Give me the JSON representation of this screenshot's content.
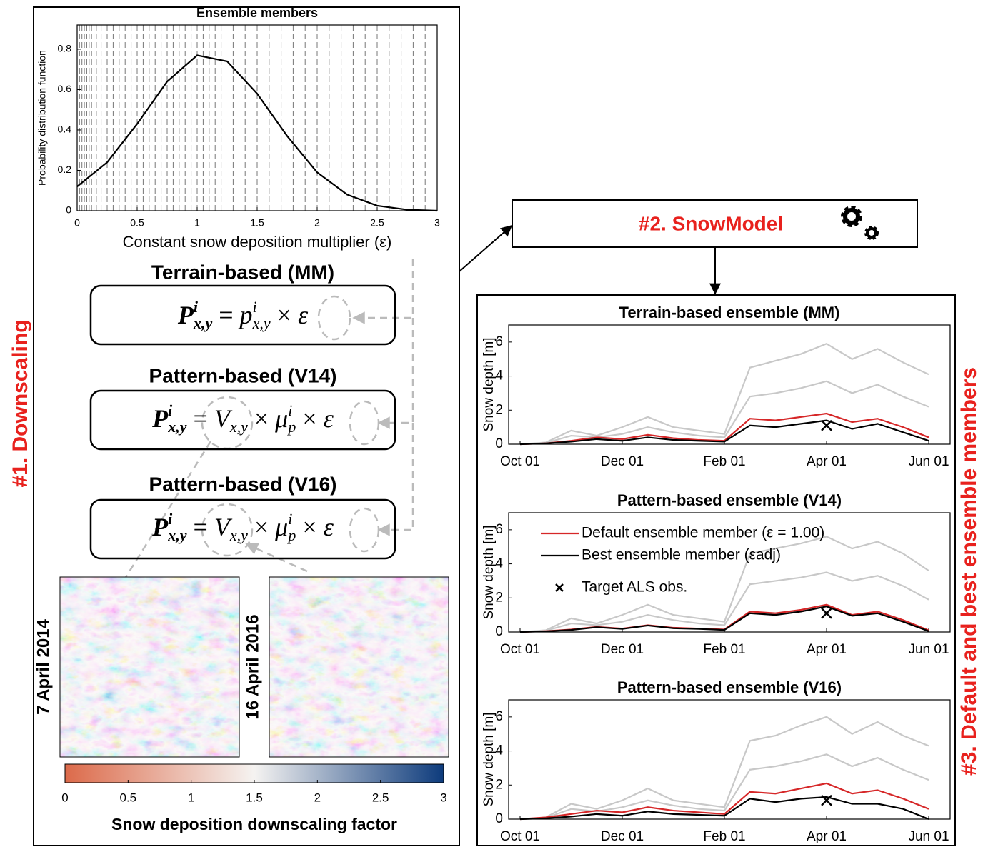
{
  "chart_data": [
    {
      "type": "line",
      "title": "Ensemble members",
      "xlabel": "Constant snow deposition multiplier (ε)",
      "ylabel": "Probability distribution function",
      "x": [
        0,
        0.25,
        0.5,
        0.75,
        1,
        1.25,
        1.5,
        1.75,
        2,
        2.25,
        2.5,
        2.75,
        3
      ],
      "series": [
        {
          "color": "#000000",
          "values": [
            0.12,
            0.24,
            0.43,
            0.64,
            0.77,
            0.74,
            0.58,
            0.37,
            0.19,
            0.08,
            0.025,
            0.005,
            0
          ]
        }
      ],
      "vlines": [
        0.02,
        0.04,
        0.06,
        0.08,
        0.1,
        0.12,
        0.14,
        0.16,
        0.2,
        0.25,
        0.3,
        0.35,
        0.4,
        0.45,
        0.5,
        0.55,
        0.6,
        0.65,
        0.7,
        0.75,
        0.8,
        0.85,
        0.9,
        0.95,
        1.0,
        1.05,
        1.1,
        1.15,
        1.2,
        1.3,
        1.4,
        1.5,
        1.6,
        1.7,
        1.8,
        1.9,
        2.0,
        2.1,
        2.2,
        2.3,
        2.4,
        2.5,
        2.6,
        2.7,
        2.8,
        2.9,
        3.0
      ],
      "vline_color": "#777777",
      "xlim": [
        0,
        3
      ],
      "xticks": [
        0,
        0.5,
        1,
        1.5,
        2,
        2.5,
        3
      ],
      "ylim": [
        0,
        0.92
      ],
      "yticks": [
        0,
        0.2,
        0.4,
        0.6,
        0.8
      ]
    },
    {
      "type": "line",
      "title": "Terrain-based ensemble (MM)",
      "ylabel": "Snow depth [m]",
      "categories": [
        "Oct 01",
        null,
        null,
        null,
        "Dec 01",
        null,
        null,
        null,
        "Feb 01",
        null,
        null,
        null,
        "Apr 01",
        null,
        null,
        null,
        "Jun 01"
      ],
      "series": [
        {
          "color": "#c8c8c8",
          "values": [
            0,
            0.1,
            0.8,
            0.5,
            1.0,
            1.6,
            1.0,
            0.8,
            0.6,
            4.5,
            4.9,
            5.3,
            5.9,
            5.0,
            5.6,
            4.8,
            4.1
          ]
        },
        {
          "color": "#c8c8c8",
          "values": [
            0,
            0.07,
            0.5,
            0.4,
            0.6,
            1.0,
            0.7,
            0.5,
            0.4,
            2.8,
            3.0,
            3.3,
            3.7,
            3.0,
            3.5,
            2.8,
            2.2
          ]
        },
        {
          "color": "#d62728",
          "values": [
            0,
            0.05,
            0.2,
            0.4,
            0.3,
            0.55,
            0.35,
            0.25,
            0.2,
            1.5,
            1.4,
            1.6,
            1.8,
            1.3,
            1.5,
            1.0,
            0.4
          ]
        },
        {
          "color": "#000000",
          "values": [
            0,
            0.05,
            0.15,
            0.3,
            0.2,
            0.4,
            0.25,
            0.2,
            0.15,
            1.1,
            1.0,
            1.2,
            1.4,
            0.9,
            1.2,
            0.7,
            0.2
          ]
        },
        {
          "color": "#000000",
          "marker": "x",
          "values": [
            null,
            null,
            null,
            null,
            null,
            null,
            null,
            null,
            null,
            null,
            null,
            null,
            1.1,
            null,
            null,
            null,
            null
          ]
        }
      ],
      "ylim": [
        0,
        7
      ],
      "yticks": [
        0,
        2,
        4,
        6
      ]
    },
    {
      "type": "line",
      "title": "Pattern-based ensemble (V14)",
      "ylabel": "Snow depth [m]",
      "legend": "upper left",
      "categories": [
        "Oct 01",
        null,
        null,
        null,
        "Dec 01",
        null,
        null,
        null,
        "Feb 01",
        null,
        null,
        null,
        "Apr 01",
        null,
        null,
        null,
        "Jun 01"
      ],
      "series": [
        {
          "color": "#c8c8c8",
          "values": [
            0,
            0.1,
            0.8,
            0.5,
            1.0,
            1.6,
            1.0,
            0.8,
            0.6,
            4.6,
            4.9,
            5.2,
            5.6,
            4.9,
            5.3,
            4.6,
            3.6
          ]
        },
        {
          "color": "#c8c8c8",
          "values": [
            0,
            0.07,
            0.5,
            0.4,
            0.6,
            1.0,
            0.7,
            0.5,
            0.4,
            2.8,
            3.0,
            3.2,
            3.5,
            3.0,
            3.3,
            2.7,
            1.9
          ]
        },
        {
          "name": "Default ensemble member (ε = 1.00)",
          "color": "#d62728",
          "values": [
            0,
            0.05,
            0.15,
            0.3,
            0.2,
            0.4,
            0.25,
            0.2,
            0.15,
            1.2,
            1.1,
            1.3,
            1.6,
            1.0,
            1.2,
            0.7,
            0.1
          ]
        },
        {
          "name": "Best ensemble member (εadj)",
          "color": "#000000",
          "values": [
            0,
            0.04,
            0.12,
            0.28,
            0.18,
            0.38,
            0.22,
            0.18,
            0.12,
            1.1,
            1.0,
            1.2,
            1.5,
            0.95,
            1.1,
            0.6,
            0.05
          ]
        },
        {
          "name": "Target ALS obs.",
          "color": "#000000",
          "marker": "x",
          "values": [
            null,
            null,
            null,
            null,
            null,
            null,
            null,
            null,
            null,
            null,
            null,
            null,
            1.1,
            null,
            null,
            null,
            null
          ]
        }
      ],
      "ylim": [
        0,
        7
      ],
      "yticks": [
        0,
        2,
        4,
        6
      ]
    },
    {
      "type": "line",
      "title": "Pattern-based ensemble (V16)",
      "ylabel": "Snow depth [m]",
      "categories": [
        "Oct 01",
        null,
        null,
        null,
        "Dec 01",
        null,
        null,
        null,
        "Feb 01",
        null,
        null,
        null,
        "Apr 01",
        null,
        null,
        null,
        "Jun 01"
      ],
      "series": [
        {
          "color": "#c8c8c8",
          "values": [
            0,
            0.1,
            0.9,
            0.6,
            1.1,
            1.8,
            1.1,
            0.9,
            0.7,
            4.6,
            4.9,
            5.5,
            6.0,
            5.0,
            5.7,
            4.9,
            4.3
          ]
        },
        {
          "color": "#c8c8c8",
          "values": [
            0,
            0.07,
            0.6,
            0.45,
            0.7,
            1.1,
            0.8,
            0.6,
            0.5,
            2.9,
            3.1,
            3.4,
            3.8,
            3.1,
            3.6,
            2.9,
            2.3
          ]
        },
        {
          "color": "#d62728",
          "values": [
            0,
            0.1,
            0.3,
            0.5,
            0.4,
            0.7,
            0.5,
            0.4,
            0.3,
            1.6,
            1.5,
            1.8,
            2.1,
            1.5,
            1.7,
            1.2,
            0.6
          ]
        },
        {
          "color": "#000000",
          "values": [
            0,
            0.05,
            0.15,
            0.3,
            0.2,
            0.45,
            0.3,
            0.25,
            0.2,
            1.2,
            1.0,
            1.2,
            1.3,
            0.9,
            0.9,
            0.6,
            0.0
          ]
        },
        {
          "color": "#000000",
          "marker": "x",
          "values": [
            null,
            null,
            null,
            null,
            null,
            null,
            null,
            null,
            null,
            null,
            null,
            null,
            1.1,
            null,
            null,
            null,
            null
          ]
        }
      ],
      "ylim": [
        0,
        7
      ],
      "yticks": [
        0,
        2,
        4,
        6
      ]
    }
  ],
  "colorbar": {
    "label": "Snow deposition downscaling factor",
    "lim": [
      0,
      3
    ],
    "ticks": [
      0,
      0.5,
      1,
      1.5,
      2,
      2.5,
      3
    ],
    "colors": [
      "#dc6a4a",
      "#f5f3f1",
      "#0d3b7c"
    ]
  },
  "equations": [
    {
      "title": "Terrain-based (MM)",
      "formula": [
        {
          "base": "P",
          "sup": "i",
          "sub": "x,y"
        },
        {
          "text": " = "
        },
        {
          "base": "p",
          "sup": "i",
          "sub": "x,y"
        },
        {
          "text": " × "
        },
        {
          "text": "ε"
        }
      ]
    },
    {
      "title": "Pattern-based (V14)",
      "formula": [
        {
          "base": "P",
          "sup": "i",
          "sub": "x,y"
        },
        {
          "text": " = "
        },
        {
          "base": "V",
          "sub": "x,y"
        },
        {
          "text": " × "
        },
        {
          "base": "μ",
          "sup": "i",
          "sub": "p"
        },
        {
          "text": " × "
        },
        {
          "text": "ε"
        }
      ]
    },
    {
      "title": "Pattern-based (V16)",
      "formula": [
        {
          "base": "P",
          "sup": "i",
          "sub": "x,y"
        },
        {
          "text": " = "
        },
        {
          "base": "V",
          "sub": "x,y"
        },
        {
          "text": " × "
        },
        {
          "base": "μ",
          "sup": "i",
          "sub": "p"
        },
        {
          "text": " × "
        },
        {
          "text": "ε"
        }
      ]
    }
  ],
  "maps": [
    "7 April 2014",
    "16 April 2016"
  ],
  "steps": [
    "#1. Downscaling",
    "#2. SnowModel",
    "#3. Default and best ensemble members"
  ]
}
